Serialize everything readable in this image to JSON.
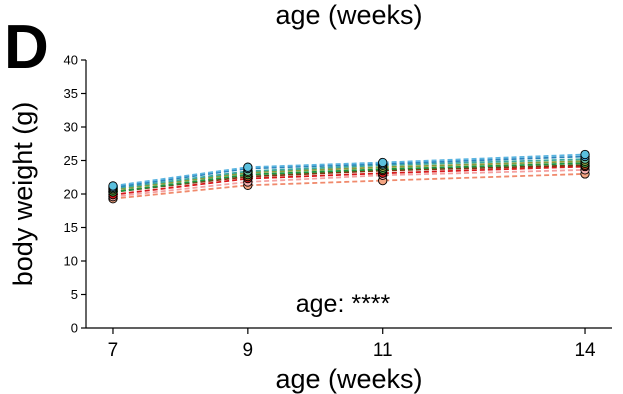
{
  "panel_letter": "D",
  "top_label": "age (weeks)",
  "chart_data": {
    "type": "line",
    "title": "",
    "xlabel": "age (weeks)",
    "ylabel": "body weight (g)",
    "x": [
      7,
      9,
      11,
      14
    ],
    "xlim": [
      6.6,
      14.4
    ],
    "ylim": [
      0,
      40
    ],
    "xticks": [
      7,
      9,
      11,
      14
    ],
    "yticks": [
      0,
      5,
      10,
      15,
      20,
      25,
      30,
      35,
      40
    ],
    "grid": false,
    "legend": "none",
    "annotation": "age: ****",
    "series": [
      {
        "color": "#f08a6c",
        "fill": "#f4a582",
        "values": [
          19.3,
          21.3,
          22.0,
          23.0
        ]
      },
      {
        "color": "#f4a0a0",
        "fill": "#f7b0b0",
        "values": [
          19.6,
          21.8,
          22.8,
          23.6
        ]
      },
      {
        "color": "#d7191c",
        "fill": "#d7191c",
        "values": [
          19.9,
          22.3,
          23.1,
          24.1
        ]
      },
      {
        "color": "#7a3b10",
        "fill": "#b2531f",
        "values": [
          20.3,
          22.6,
          23.5,
          24.3
        ]
      },
      {
        "color": "#1a9641",
        "fill": "#4daf4a",
        "values": [
          20.3,
          22.9,
          23.7,
          24.6
        ]
      },
      {
        "color": "#8a9a3a",
        "fill": "#a6b84a",
        "values": [
          20.6,
          23.2,
          24.0,
          24.9
        ]
      },
      {
        "color": "#3aa8a0",
        "fill": "#66c2a5",
        "values": [
          20.8,
          23.4,
          24.3,
          25.2
        ]
      },
      {
        "color": "#2b83ba",
        "fill": "#4aa3d8",
        "values": [
          21.0,
          23.8,
          24.5,
          25.6
        ]
      },
      {
        "color": "#5ab4e0",
        "fill": "#5bc0de",
        "values": [
          21.2,
          24.0,
          24.7,
          25.9
        ]
      }
    ]
  }
}
